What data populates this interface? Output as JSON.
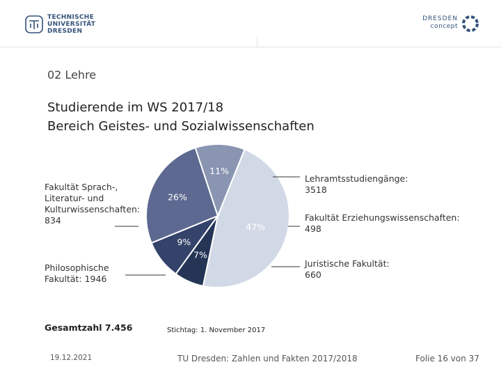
{
  "header": {
    "left_logo": {
      "line1": "TECHNISCHE",
      "line2": "UNIVERSITÄT",
      "line3": "DRESDEN"
    },
    "right_logo": {
      "line1": "DRESDEN",
      "line2": "concept"
    }
  },
  "section_label": "02 Lehre",
  "title": {
    "line1": "Studierende im WS 2017/18",
    "line2": "Bereich Geistes- und Sozialwissenschaften"
  },
  "chart_data": {
    "type": "pie",
    "title": "Studierende im WS 2017/18 – Bereich Geistes- und Sozialwissenschaften",
    "slices": [
      {
        "name": "Lehramtsstudiengänge",
        "value": 3518,
        "percent_label": "47%",
        "color": "#d2d9e6"
      },
      {
        "name": "Fakultät Erziehungswissenschaften",
        "value": 498,
        "percent_label": "7%",
        "color": "#243556"
      },
      {
        "name": "Juristische Fakultät",
        "value": 660,
        "percent_label": "9%",
        "color": "#34436a"
      },
      {
        "name": "Philosophische Fakultät",
        "value": 1946,
        "percent_label": "26%",
        "color": "#5d6990"
      },
      {
        "name": "Fakultät Sprach-, Literatur- und Kulturwissenschaften",
        "value": 834,
        "percent_label": "11%",
        "color": "#8a95b2"
      }
    ],
    "total_label": "Gesamtzahl 7.456",
    "note": "Stichtag: 1. November 2017"
  },
  "labels": {
    "sprach": {
      "l1": "Fakultät Sprach-,",
      "l2": "Literatur- und",
      "l3": "Kulturwissenschaften:",
      "l4": "834"
    },
    "philo": {
      "l1": "Philosophische",
      "l2": "Fakultät: 1946"
    },
    "lehramt": {
      "l1": "Lehramtsstudiengänge:",
      "l2": "3518"
    },
    "erziehung": {
      "l1": "Fakultät Erziehungswissenschaften:",
      "l2": "498"
    },
    "jura": {
      "l1": "Juristische Fakultät:",
      "l2": "660"
    }
  },
  "footer": {
    "date": "19.12.2021",
    "center": "TU Dresden: Zahlen und Fakten 2017/2018",
    "page": "Folie 16 von 37"
  },
  "colors": {
    "leader": "#333333",
    "brand": "#33527a"
  }
}
